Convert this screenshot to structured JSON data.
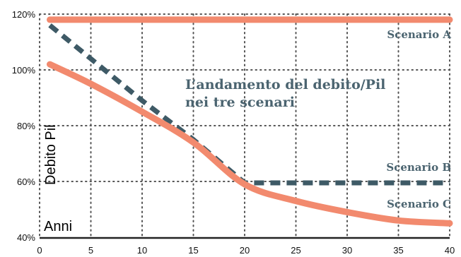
{
  "chart_data": {
    "type": "line",
    "title": "L’andamento del debito/Pil nei tre scenari",
    "title_lines": [
      "L’andamento del debito/Pil",
      "nei tre scenari"
    ],
    "ylabel": "Debito Pil",
    "xlabel": "Anni",
    "xlim": [
      0,
      40
    ],
    "ylim": [
      40,
      120
    ],
    "x_ticks": [
      0,
      5,
      10,
      15,
      20,
      25,
      30,
      35,
      40
    ],
    "y_ticks": [
      40,
      60,
      80,
      100,
      120
    ],
    "y_tick_labels": [
      "40%",
      "60%",
      "80%",
      "100%",
      "120%"
    ],
    "grid": true,
    "series": [
      {
        "name": "Scenario A",
        "style": "solid",
        "color": "#f28a6e",
        "x": [
          1,
          40
        ],
        "y": [
          118,
          118
        ]
      },
      {
        "name": "Scenario B",
        "style": "dashed",
        "color": "#3e5a66",
        "x": [
          1,
          5,
          10,
          15,
          20,
          25,
          30,
          35,
          40
        ],
        "y": [
          116,
          104,
          89,
          75,
          59.5,
          59.5,
          59.5,
          59.5,
          59.5
        ]
      },
      {
        "name": "Scenario C",
        "style": "solid",
        "color": "#f28a6e",
        "x": [
          1,
          5,
          10,
          15,
          20,
          25,
          30,
          35,
          40
        ],
        "y": [
          102,
          95,
          85,
          74,
          59,
          53,
          49,
          46,
          45
        ]
      }
    ]
  }
}
